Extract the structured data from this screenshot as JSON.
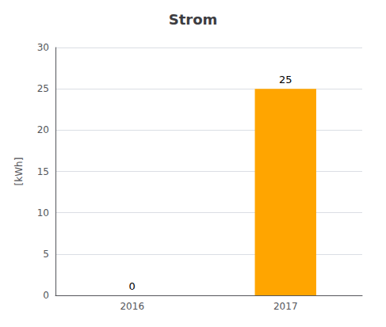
{
  "chart_data": {
    "type": "bar",
    "title": "Strom",
    "ylabel": "[kWh]",
    "categories": [
      "2016",
      "2017"
    ],
    "values": [
      0,
      25
    ],
    "colors": [
      "#ffffff",
      "#FFA500"
    ],
    "ylim": [
      0,
      30
    ],
    "yticks": [
      0,
      5,
      10,
      15,
      20,
      25,
      30
    ],
    "grid": true,
    "data_labels": true
  }
}
